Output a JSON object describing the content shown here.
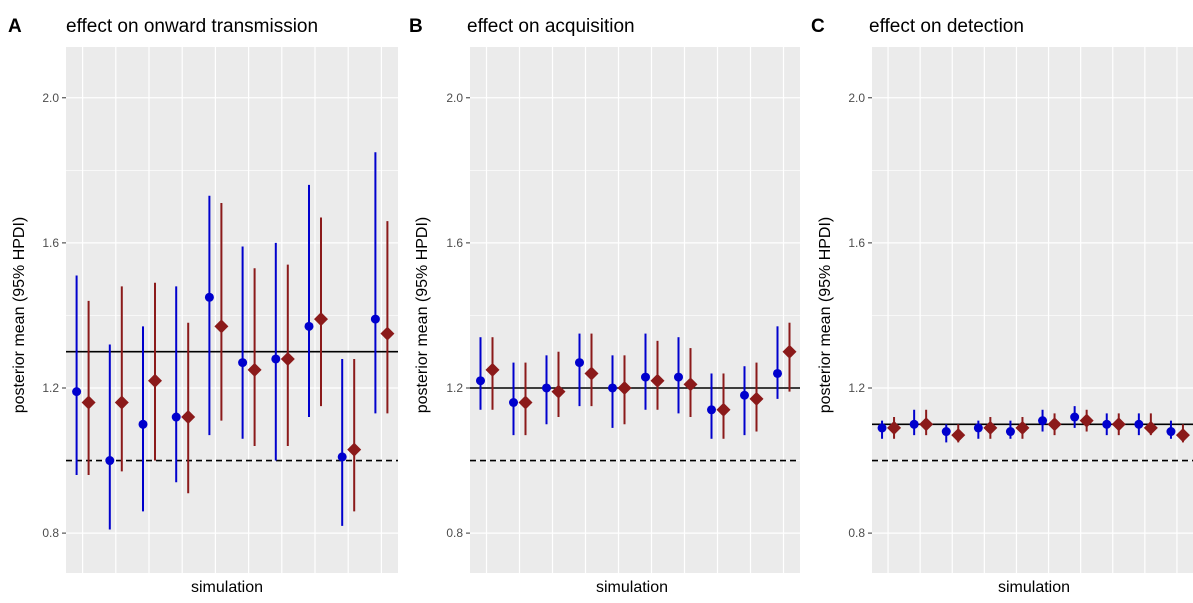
{
  "colors": {
    "series1": "#0000CD",
    "series2": "#8B1A1A",
    "panel_bg": "#EBEBEB",
    "grid": "#FFFFFF",
    "reference_line": "#000000"
  },
  "chart_data": [
    {
      "type": "scatter",
      "letter": "A",
      "title": "effect on onward transmission",
      "xlabel": "simulation",
      "ylabel": "posterior mean (95% HPDI)",
      "ylim": [
        0.69,
        2.14
      ],
      "yticks": [
        "0.8",
        "1.2",
        "1.6",
        "2.0"
      ],
      "x": [
        1,
        2,
        3,
        4,
        5,
        6,
        7,
        8,
        9,
        10
      ],
      "true_value": 1.3,
      "null_value": 1.0,
      "grid": true,
      "series": [
        {
          "marker": "circle",
          "mean": [
            1.19,
            1.0,
            1.1,
            1.12,
            1.45,
            1.27,
            1.28,
            1.37,
            1.01,
            1.39
          ],
          "lower": [
            0.96,
            0.81,
            0.86,
            0.94,
            1.07,
            1.06,
            1.0,
            1.12,
            0.82,
            1.13
          ],
          "upper": [
            1.51,
            1.32,
            1.37,
            1.48,
            1.73,
            1.59,
            1.6,
            1.76,
            1.28,
            1.85
          ]
        },
        {
          "marker": "diamond",
          "mean": [
            1.16,
            1.16,
            1.22,
            1.12,
            1.37,
            1.25,
            1.28,
            1.39,
            1.03,
            1.35
          ],
          "lower": [
            0.96,
            0.97,
            1.0,
            0.91,
            1.11,
            1.04,
            1.04,
            1.15,
            0.86,
            1.13
          ],
          "upper": [
            1.44,
            1.48,
            1.49,
            1.38,
            1.71,
            1.53,
            1.54,
            1.67,
            1.28,
            1.66
          ]
        }
      ]
    },
    {
      "type": "scatter",
      "letter": "B",
      "title": "effect on acquisition",
      "xlabel": "simulation",
      "ylabel": "posterior mean (95% HPDI)",
      "ylim": [
        0.69,
        2.14
      ],
      "yticks": [
        "0.8",
        "1.2",
        "1.6",
        "2.0"
      ],
      "x": [
        1,
        2,
        3,
        4,
        5,
        6,
        7,
        8,
        9,
        10
      ],
      "true_value": 1.2,
      "null_value": 1.0,
      "grid": true,
      "series": [
        {
          "marker": "circle",
          "mean": [
            1.22,
            1.16,
            1.2,
            1.27,
            1.2,
            1.23,
            1.23,
            1.14,
            1.18,
            1.24
          ],
          "lower": [
            1.14,
            1.07,
            1.1,
            1.15,
            1.09,
            1.14,
            1.13,
            1.06,
            1.07,
            1.17
          ],
          "upper": [
            1.34,
            1.27,
            1.29,
            1.35,
            1.29,
            1.35,
            1.34,
            1.24,
            1.26,
            1.37
          ]
        },
        {
          "marker": "diamond",
          "mean": [
            1.25,
            1.16,
            1.19,
            1.24,
            1.2,
            1.22,
            1.21,
            1.14,
            1.17,
            1.3
          ],
          "lower": [
            1.14,
            1.07,
            1.12,
            1.15,
            1.1,
            1.14,
            1.12,
            1.06,
            1.08,
            1.19
          ],
          "upper": [
            1.34,
            1.27,
            1.3,
            1.35,
            1.29,
            1.33,
            1.31,
            1.24,
            1.27,
            1.38
          ]
        }
      ]
    },
    {
      "type": "scatter",
      "letter": "C",
      "title": "effect on detection",
      "xlabel": "simulation",
      "ylabel": "posterior mean (95% HPDI)",
      "ylim": [
        0.69,
        2.14
      ],
      "yticks": [
        "0.8",
        "1.2",
        "1.6",
        "2.0"
      ],
      "x": [
        1,
        2,
        3,
        4,
        5,
        6,
        7,
        8,
        9,
        10
      ],
      "true_value": 1.1,
      "null_value": 1.0,
      "grid": true,
      "series": [
        {
          "marker": "circle",
          "mean": [
            1.09,
            1.1,
            1.08,
            1.09,
            1.08,
            1.11,
            1.12,
            1.1,
            1.1,
            1.08
          ],
          "lower": [
            1.06,
            1.07,
            1.05,
            1.06,
            1.06,
            1.08,
            1.09,
            1.07,
            1.07,
            1.06
          ],
          "upper": [
            1.11,
            1.14,
            1.1,
            1.11,
            1.11,
            1.14,
            1.15,
            1.13,
            1.13,
            1.11
          ]
        },
        {
          "marker": "diamond",
          "mean": [
            1.09,
            1.1,
            1.07,
            1.09,
            1.09,
            1.1,
            1.11,
            1.1,
            1.09,
            1.07
          ],
          "lower": [
            1.06,
            1.07,
            1.05,
            1.06,
            1.06,
            1.07,
            1.08,
            1.07,
            1.07,
            1.05
          ],
          "upper": [
            1.12,
            1.14,
            1.1,
            1.12,
            1.12,
            1.13,
            1.14,
            1.13,
            1.13,
            1.1
          ]
        }
      ]
    }
  ]
}
